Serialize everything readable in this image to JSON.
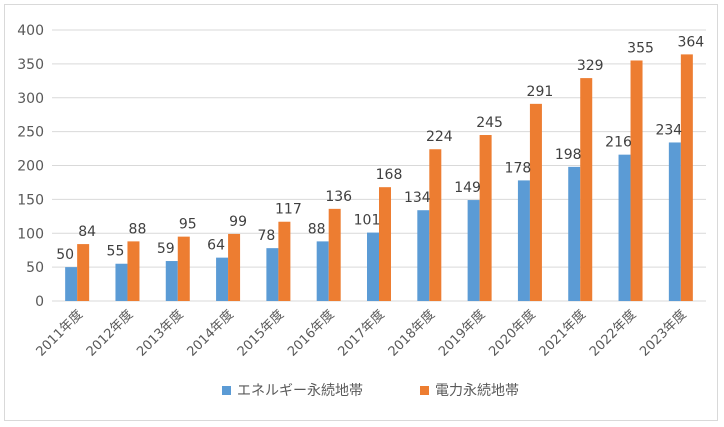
{
  "chart_data": {
    "type": "bar",
    "categories": [
      "2011年度",
      "2012年度",
      "2013年度",
      "2014年度",
      "2015年度",
      "2016年度",
      "2017年度",
      "2018年度",
      "2019年度",
      "2020年度",
      "2021年度",
      "2022年度",
      "2023年度"
    ],
    "series": [
      {
        "name": "エネルギー永続地帯",
        "color": "#5B9BD5",
        "values": [
          50,
          55,
          59,
          64,
          78,
          88,
          101,
          134,
          149,
          178,
          198,
          216,
          234
        ]
      },
      {
        "name": "電力永続地帯",
        "color": "#ED7D31",
        "values": [
          84,
          88,
          95,
          99,
          117,
          136,
          168,
          224,
          245,
          291,
          329,
          355,
          364
        ]
      }
    ],
    "ylim": [
      0,
      400
    ],
    "yticks": [
      0,
      50,
      100,
      150,
      200,
      250,
      300,
      350,
      400
    ],
    "grid": true,
    "legend_position": "bottom"
  }
}
